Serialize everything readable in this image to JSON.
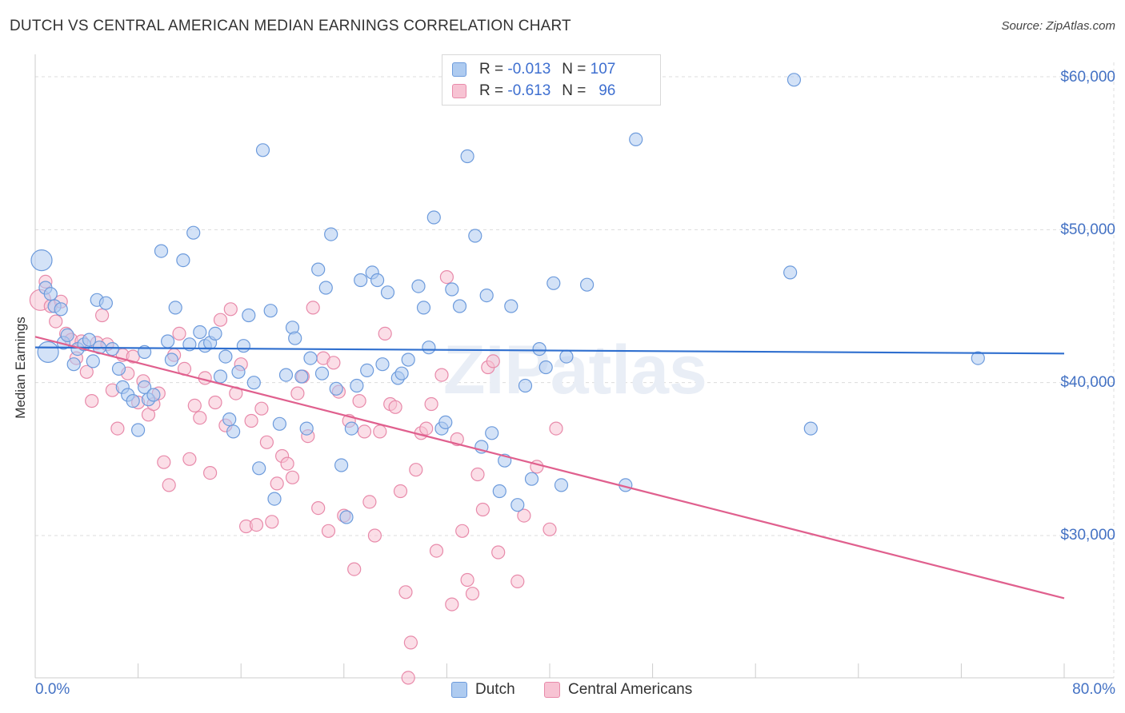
{
  "title": "DUTCH VS CENTRAL AMERICAN MEDIAN EARNINGS CORRELATION CHART",
  "source": "Source: ZipAtlas.com",
  "watermark": "ZIPatlas",
  "legend": {
    "rows": [
      {
        "r_label": "R =",
        "r_value": "-0.013",
        "n_label": "N =",
        "n_value": "107"
      },
      {
        "r_label": "R =",
        "r_value": "-0.613",
        "n_label": "N =",
        "n_value": "96"
      }
    ]
  },
  "colors": {
    "dutch_fill": "#aecbf0",
    "dutch_stroke": "#6d9bdc",
    "dutch_line": "#2f6fcf",
    "ca_fill": "#f7c3d3",
    "ca_stroke": "#e88aaa",
    "ca_line": "#e0608e",
    "tick_text": "#4472c4",
    "grid": "#dcdcdc"
  },
  "chart_data": {
    "type": "scatter",
    "title": "DUTCH VS CENTRAL AMERICAN MEDIAN EARNINGS CORRELATION CHART",
    "xlabel": "",
    "ylabel": "Median Earnings",
    "xlim": [
      0,
      80
    ],
    "ylim": [
      20000,
      61000
    ],
    "x_tick_labels": [
      "0.0%",
      "80.0%"
    ],
    "y_ticks": [
      30000,
      40000,
      50000,
      60000
    ],
    "y_tick_labels": [
      "$30,000",
      "$40,000",
      "$50,000",
      "$60,000"
    ],
    "grid": true,
    "legend_position": "top-center",
    "series": [
      {
        "name": "Dutch",
        "r": -0.013,
        "n": 107,
        "trend": {
          "x": [
            0,
            80
          ],
          "y": [
            42300,
            41900
          ]
        },
        "points": [
          [
            0.5,
            48000
          ],
          [
            0.8,
            46200
          ],
          [
            1.2,
            45800
          ],
          [
            1.5,
            45000
          ],
          [
            2.2,
            42600
          ],
          [
            2.5,
            43100
          ],
          [
            3.0,
            41200
          ],
          [
            3.3,
            42200
          ],
          [
            3.8,
            42500
          ],
          [
            4.2,
            42800
          ],
          [
            4.5,
            41400
          ],
          [
            4.8,
            45400
          ],
          [
            5.5,
            45200
          ],
          [
            6.0,
            42200
          ],
          [
            6.5,
            40900
          ],
          [
            6.8,
            39700
          ],
          [
            7.2,
            39200
          ],
          [
            7.6,
            38800
          ],
          [
            8.0,
            36900
          ],
          [
            8.5,
            39700
          ],
          [
            8.8,
            38900
          ],
          [
            9.2,
            39200
          ],
          [
            9.8,
            48600
          ],
          [
            10.3,
            42700
          ],
          [
            10.6,
            41500
          ],
          [
            10.9,
            44900
          ],
          [
            11.5,
            48000
          ],
          [
            12.0,
            42500
          ],
          [
            12.3,
            49800
          ],
          [
            12.8,
            43300
          ],
          [
            13.2,
            42400
          ],
          [
            13.6,
            42600
          ],
          [
            14.0,
            43200
          ],
          [
            14.4,
            40400
          ],
          [
            14.8,
            41700
          ],
          [
            15.1,
            37600
          ],
          [
            15.4,
            36800
          ],
          [
            15.8,
            40700
          ],
          [
            16.2,
            42400
          ],
          [
            16.6,
            44400
          ],
          [
            17.0,
            40000
          ],
          [
            17.4,
            34400
          ],
          [
            17.7,
            55200
          ],
          [
            18.3,
            44700
          ],
          [
            18.6,
            32400
          ],
          [
            19.0,
            37300
          ],
          [
            19.5,
            40500
          ],
          [
            20.0,
            43600
          ],
          [
            20.2,
            42900
          ],
          [
            20.7,
            40400
          ],
          [
            21.1,
            37000
          ],
          [
            21.4,
            41600
          ],
          [
            22.0,
            47400
          ],
          [
            22.3,
            40600
          ],
          [
            22.6,
            46200
          ],
          [
            23.0,
            49700
          ],
          [
            23.4,
            39600
          ],
          [
            23.8,
            34600
          ],
          [
            24.2,
            31200
          ],
          [
            24.6,
            37000
          ],
          [
            25.0,
            39800
          ],
          [
            25.3,
            46700
          ],
          [
            25.8,
            40800
          ],
          [
            26.2,
            47200
          ],
          [
            26.6,
            46700
          ],
          [
            27.0,
            41200
          ],
          [
            27.4,
            45900
          ],
          [
            28.2,
            40300
          ],
          [
            28.5,
            40600
          ],
          [
            29.0,
            41500
          ],
          [
            29.8,
            46300
          ],
          [
            30.2,
            44900
          ],
          [
            30.6,
            42300
          ],
          [
            31.0,
            50800
          ],
          [
            31.6,
            37000
          ],
          [
            31.9,
            37400
          ],
          [
            32.4,
            46100
          ],
          [
            33.0,
            45000
          ],
          [
            33.6,
            54800
          ],
          [
            34.2,
            49600
          ],
          [
            34.7,
            35800
          ],
          [
            35.1,
            45700
          ],
          [
            35.5,
            36700
          ],
          [
            36.1,
            32900
          ],
          [
            36.5,
            34900
          ],
          [
            37.0,
            45000
          ],
          [
            37.5,
            32000
          ],
          [
            38.1,
            39800
          ],
          [
            38.6,
            33700
          ],
          [
            39.2,
            42200
          ],
          [
            39.7,
            41000
          ],
          [
            40.3,
            46500
          ],
          [
            40.9,
            33300
          ],
          [
            41.3,
            41700
          ],
          [
            42.9,
            46400
          ],
          [
            45.9,
            33300
          ],
          [
            46.7,
            55900
          ],
          [
            59.0,
            59800
          ],
          [
            60.3,
            37000
          ],
          [
            58.7,
            47200
          ],
          [
            73.3,
            41600
          ],
          [
            1.0,
            42000
          ],
          [
            2.0,
            44800
          ],
          [
            5.0,
            42300
          ],
          [
            8.5,
            42000
          ]
        ]
      },
      {
        "name": "Central Americans",
        "r": -0.613,
        "n": 96,
        "trend": {
          "x": [
            0,
            80
          ],
          "y": [
            43000,
            25900
          ]
        },
        "points": [
          [
            0.4,
            45400
          ],
          [
            0.8,
            46600
          ],
          [
            1.2,
            45000
          ],
          [
            1.6,
            44000
          ],
          [
            2.0,
            45300
          ],
          [
            2.4,
            43200
          ],
          [
            2.8,
            42800
          ],
          [
            3.2,
            41600
          ],
          [
            3.6,
            42700
          ],
          [
            4.0,
            40700
          ],
          [
            4.4,
            38800
          ],
          [
            4.8,
            42600
          ],
          [
            5.2,
            44400
          ],
          [
            5.6,
            42500
          ],
          [
            6.0,
            39500
          ],
          [
            6.4,
            37000
          ],
          [
            6.8,
            41800
          ],
          [
            7.2,
            40600
          ],
          [
            7.6,
            41700
          ],
          [
            8.0,
            38700
          ],
          [
            8.4,
            40100
          ],
          [
            8.8,
            37900
          ],
          [
            9.2,
            38600
          ],
          [
            9.6,
            39300
          ],
          [
            10.0,
            34800
          ],
          [
            10.4,
            33300
          ],
          [
            10.8,
            41800
          ],
          [
            11.2,
            43200
          ],
          [
            11.6,
            40900
          ],
          [
            12.0,
            35000
          ],
          [
            12.4,
            38500
          ],
          [
            12.8,
            37700
          ],
          [
            13.2,
            40300
          ],
          [
            13.6,
            34100
          ],
          [
            14.0,
            38700
          ],
          [
            14.4,
            44100
          ],
          [
            14.8,
            37200
          ],
          [
            15.2,
            44800
          ],
          [
            15.6,
            39300
          ],
          [
            16.0,
            41200
          ],
          [
            16.4,
            30600
          ],
          [
            16.8,
            37500
          ],
          [
            17.2,
            30700
          ],
          [
            17.6,
            38300
          ],
          [
            18.0,
            36100
          ],
          [
            18.4,
            30900
          ],
          [
            18.8,
            33400
          ],
          [
            19.2,
            35200
          ],
          [
            19.6,
            34700
          ],
          [
            20.0,
            33800
          ],
          [
            20.4,
            39300
          ],
          [
            20.8,
            40400
          ],
          [
            21.2,
            36500
          ],
          [
            21.6,
            44900
          ],
          [
            22.0,
            31800
          ],
          [
            22.4,
            41600
          ],
          [
            22.8,
            30300
          ],
          [
            23.2,
            41300
          ],
          [
            23.6,
            39400
          ],
          [
            24.0,
            31300
          ],
          [
            24.4,
            37500
          ],
          [
            24.8,
            27800
          ],
          [
            25.2,
            38800
          ],
          [
            25.6,
            36800
          ],
          [
            26.0,
            32200
          ],
          [
            26.4,
            30000
          ],
          [
            26.8,
            36800
          ],
          [
            27.2,
            43200
          ],
          [
            27.6,
            38600
          ],
          [
            28.0,
            38400
          ],
          [
            28.4,
            32900
          ],
          [
            28.8,
            26300
          ],
          [
            29.2,
            23000
          ],
          [
            29.6,
            34300
          ],
          [
            30.0,
            36700
          ],
          [
            30.4,
            37000
          ],
          [
            30.8,
            38600
          ],
          [
            31.2,
            29000
          ],
          [
            31.6,
            40500
          ],
          [
            32.0,
            46900
          ],
          [
            32.4,
            25500
          ],
          [
            32.8,
            36300
          ],
          [
            33.2,
            30300
          ],
          [
            33.6,
            27100
          ],
          [
            34.0,
            26200
          ],
          [
            34.4,
            34000
          ],
          [
            34.8,
            31700
          ],
          [
            35.2,
            41000
          ],
          [
            35.6,
            41400
          ],
          [
            36.0,
            28900
          ],
          [
            29.0,
            20700
          ],
          [
            37.5,
            27000
          ],
          [
            38.0,
            31300
          ],
          [
            39.0,
            34500
          ],
          [
            40.0,
            30400
          ],
          [
            40.5,
            37000
          ]
        ]
      }
    ]
  }
}
